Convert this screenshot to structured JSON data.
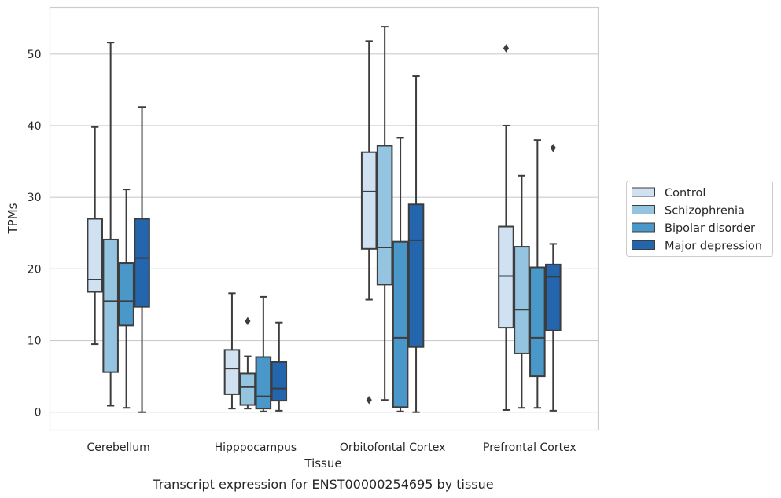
{
  "chart_data": {
    "type": "box",
    "caption": "Transcript expression for ENST00000254695 by tissue",
    "xlabel": "Tissue",
    "ylabel": "TPMs",
    "ylim": [
      -2.5,
      56.5
    ],
    "yticks": [
      0,
      10,
      20,
      30,
      40,
      50
    ],
    "grid": "horizontal",
    "legend_position": "right",
    "categories": [
      "Cerebellum",
      "Hipppocampus",
      "Orbitofontal Cortex",
      "Prefrontal Cortex"
    ],
    "series": [
      {
        "name": "Control",
        "color": "#d0e1f2",
        "boxes": [
          {
            "whislo": 9.5,
            "q1": 16.8,
            "med": 18.5,
            "q3": 27.0,
            "whishi": 39.8,
            "fliers": []
          },
          {
            "whislo": 0.5,
            "q1": 2.5,
            "med": 6.1,
            "q3": 8.7,
            "whishi": 16.6,
            "fliers": []
          },
          {
            "whislo": 15.7,
            "q1": 22.8,
            "med": 30.8,
            "q3": 36.3,
            "whishi": 51.8,
            "fliers": [
              1.7
            ]
          },
          {
            "whislo": 0.3,
            "q1": 11.8,
            "med": 19.0,
            "q3": 25.9,
            "whishi": 40.0,
            "fliers": [
              50.8
            ]
          }
        ]
      },
      {
        "name": "Schizophrenia",
        "color": "#94c4df",
        "boxes": [
          {
            "whislo": 0.9,
            "q1": 5.6,
            "med": 15.5,
            "q3": 24.1,
            "whishi": 51.6,
            "fliers": []
          },
          {
            "whislo": 0.5,
            "q1": 1.0,
            "med": 3.5,
            "q3": 5.4,
            "whishi": 7.8,
            "fliers": [
              12.7
            ]
          },
          {
            "whislo": 1.7,
            "q1": 17.8,
            "med": 23.0,
            "q3": 37.2,
            "whishi": 53.8,
            "fliers": []
          },
          {
            "whislo": 0.6,
            "q1": 8.2,
            "med": 14.3,
            "q3": 23.1,
            "whishi": 33.0,
            "fliers": []
          }
        ]
      },
      {
        "name": "Bipolar disorder",
        "color": "#4a98c9",
        "boxes": [
          {
            "whislo": 0.6,
            "q1": 12.1,
            "med": 15.5,
            "q3": 20.8,
            "whishi": 31.1,
            "fliers": []
          },
          {
            "whislo": 0.1,
            "q1": 0.5,
            "med": 2.2,
            "q3": 7.7,
            "whishi": 16.1,
            "fliers": []
          },
          {
            "whislo": 0.1,
            "q1": 0.7,
            "med": 10.4,
            "q3": 23.8,
            "whishi": 38.3,
            "fliers": []
          },
          {
            "whislo": 0.6,
            "q1": 5.0,
            "med": 10.4,
            "q3": 20.2,
            "whishi": 38.0,
            "fliers": []
          }
        ]
      },
      {
        "name": "Major depression",
        "color": "#2366ad",
        "boxes": [
          {
            "whislo": 0.0,
            "q1": 14.7,
            "med": 21.5,
            "q3": 27.0,
            "whishi": 42.6,
            "fliers": []
          },
          {
            "whislo": 0.2,
            "q1": 1.6,
            "med": 3.3,
            "q3": 7.0,
            "whishi": 12.5,
            "fliers": []
          },
          {
            "whislo": 0.0,
            "q1": 9.1,
            "med": 24.0,
            "q3": 29.0,
            "whishi": 46.9,
            "fliers": []
          },
          {
            "whislo": 0.2,
            "q1": 11.4,
            "med": 18.9,
            "q3": 20.6,
            "whishi": 23.5,
            "fliers": [
              36.9
            ]
          }
        ]
      }
    ]
  }
}
